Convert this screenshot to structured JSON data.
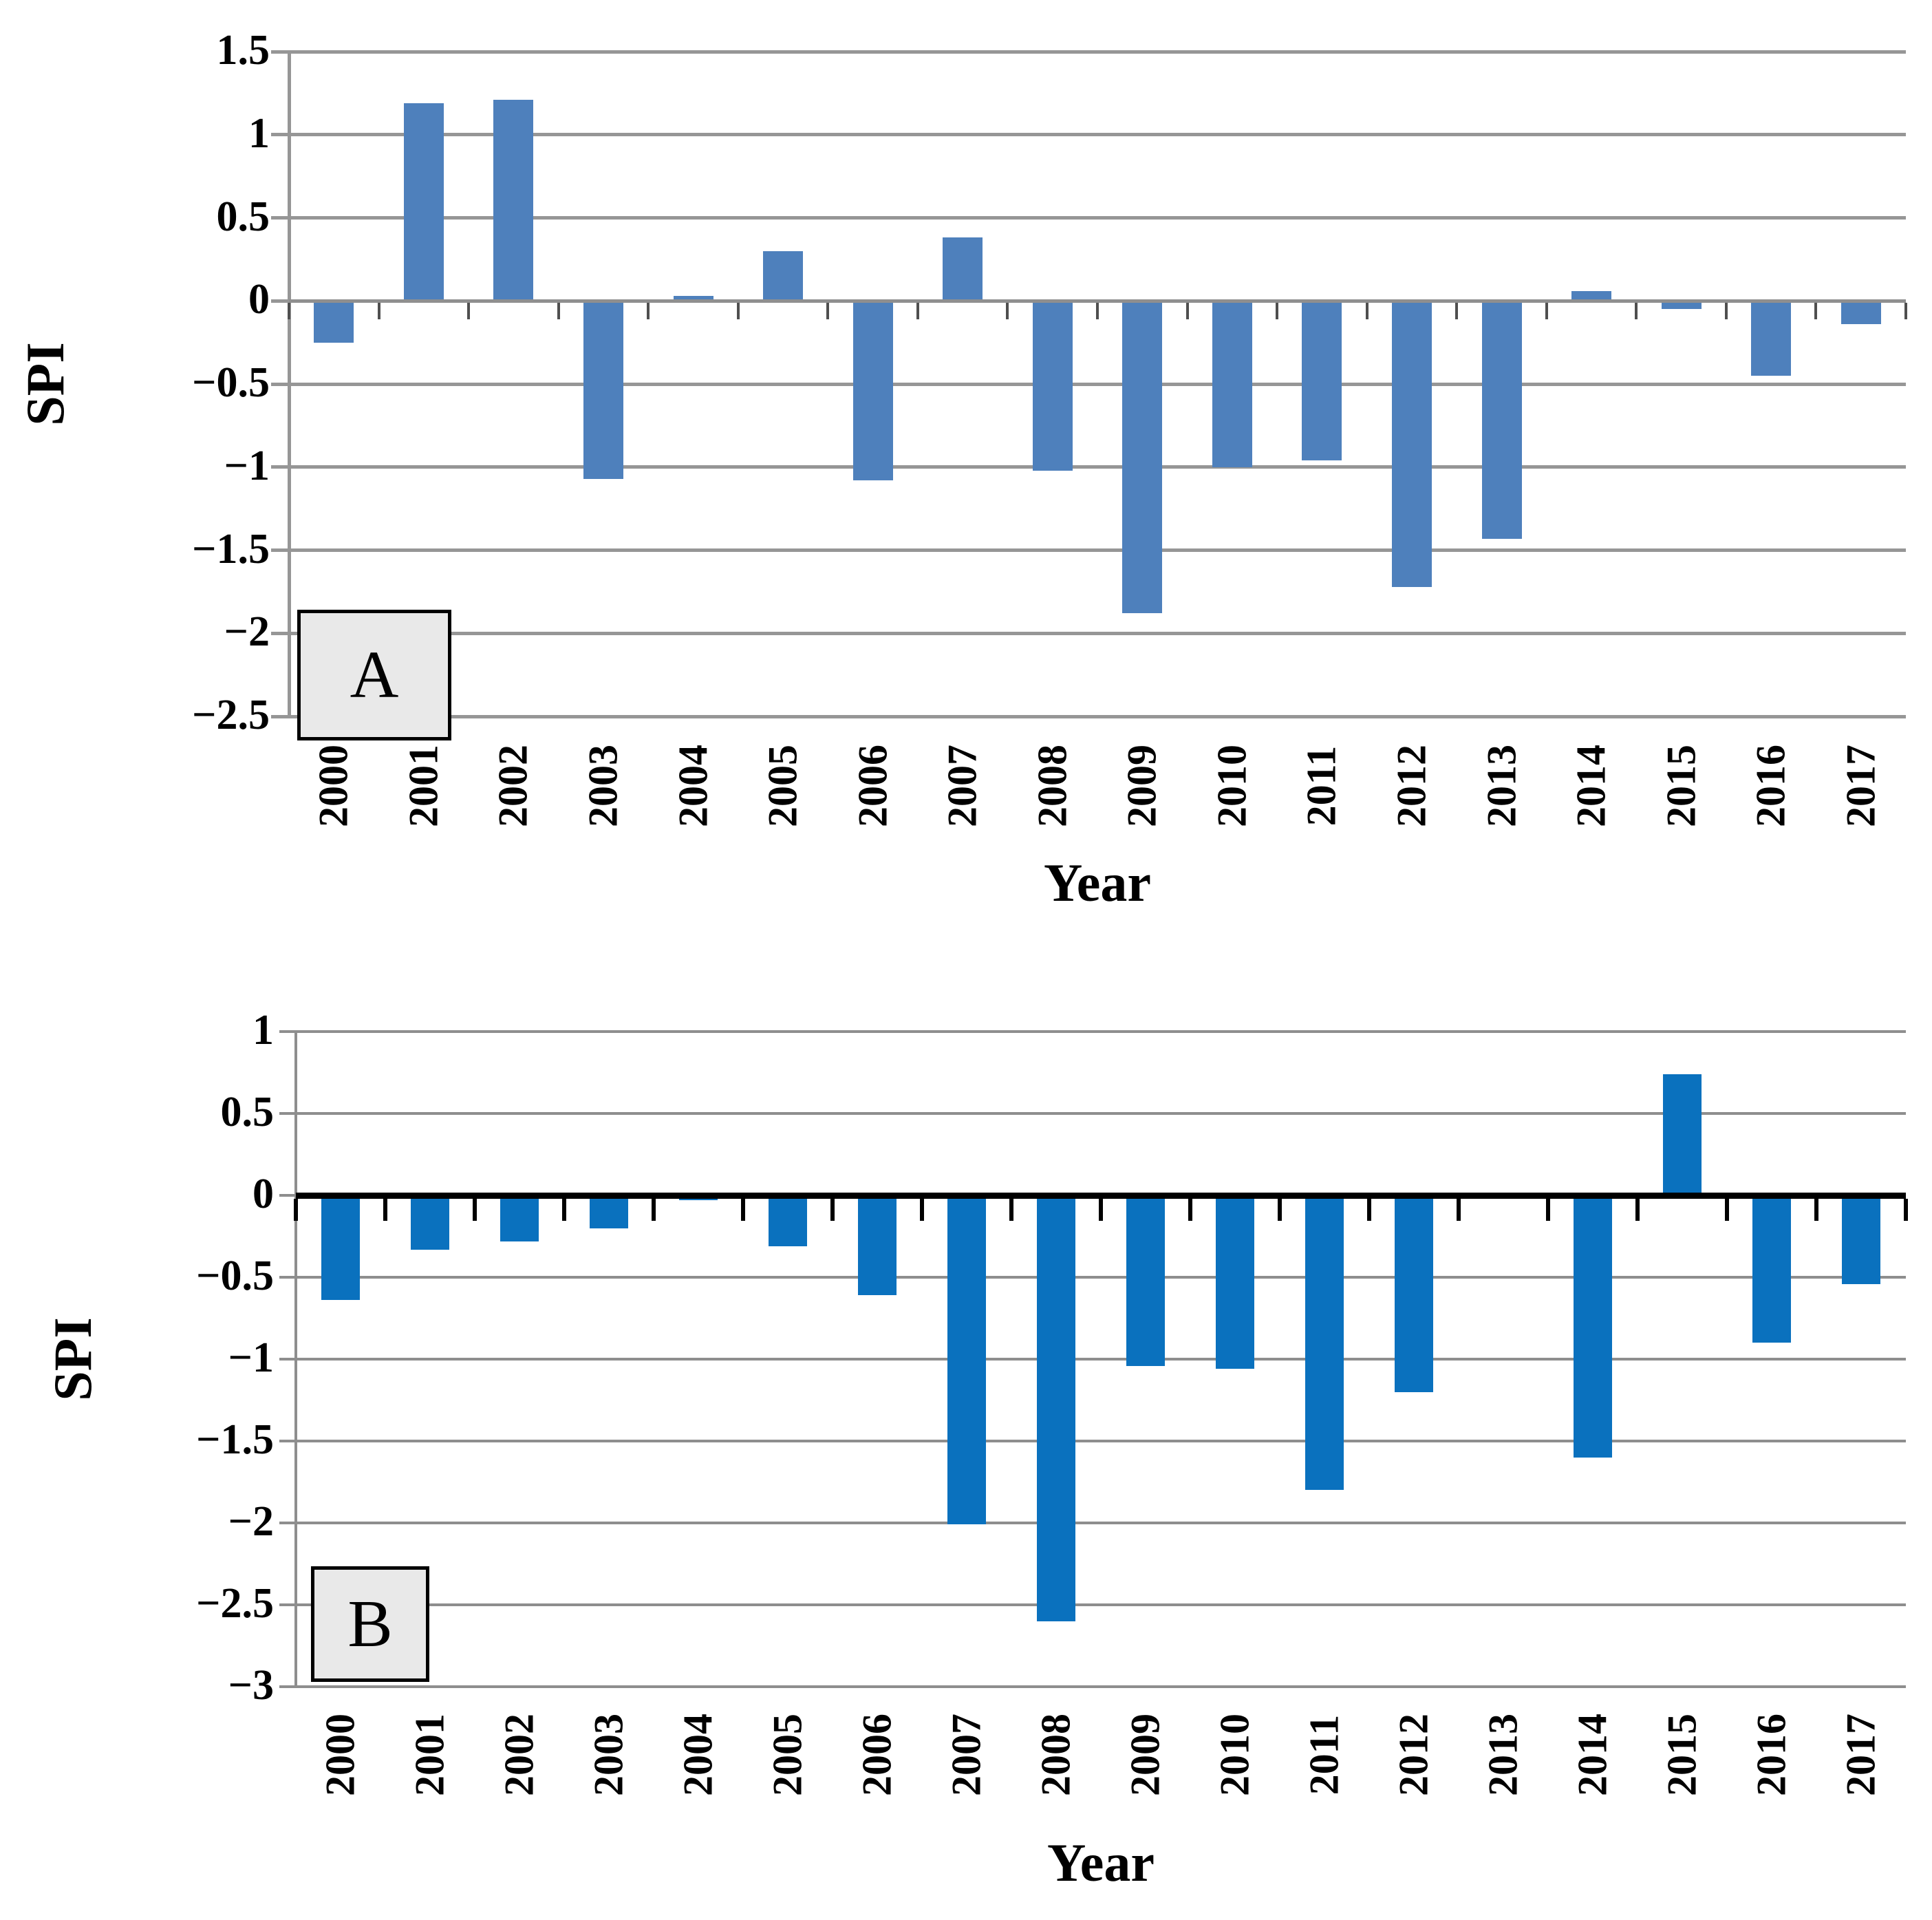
{
  "figure": {
    "background_color": "#ffffff",
    "panels": [
      "A",
      "B"
    ]
  },
  "chart_data": [
    {
      "type": "bar",
      "panel_label": "A",
      "ylabel": "SPI",
      "xlabel": "Year",
      "categories": [
        "2000",
        "2001",
        "2002",
        "2003",
        "2004",
        "2005",
        "2006",
        "2007",
        "2008",
        "2009",
        "2010",
        "2011",
        "2012",
        "2013",
        "2014",
        "2015",
        "2016",
        "2017"
      ],
      "values": [
        -0.25,
        1.19,
        1.21,
        -1.07,
        0.03,
        0.3,
        -1.08,
        0.38,
        -1.02,
        -1.88,
        -1.0,
        -0.96,
        -1.72,
        -1.43,
        0.06,
        -0.05,
        -0.45,
        -0.14
      ],
      "ylim": [
        -2.5,
        1.5
      ],
      "ytick_step": 0.5,
      "ytick_labels": [
        "1.5",
        "1",
        "0.5",
        "0",
        "−0.5",
        "−1",
        "−1.5",
        "−2",
        "−2.5"
      ],
      "grid_on": true,
      "legend": null,
      "bar_color": "#4e80bc",
      "grid_color": "#969696",
      "zero_axis_color": "#8f8f8f",
      "xtick_color": "#4f4f4f",
      "panel_fill": "#e9e9e9"
    },
    {
      "type": "bar",
      "panel_label": "B",
      "ylabel": "SPI",
      "xlabel": "Year",
      "categories": [
        "2000",
        "2001",
        "2002",
        "2003",
        "2004",
        "2005",
        "2006",
        "2007",
        "2008",
        "2009",
        "2010",
        "2011",
        "2012",
        "2013",
        "2014",
        "2015",
        "2016",
        "2017"
      ],
      "values": [
        -0.64,
        -0.33,
        -0.28,
        -0.2,
        -0.03,
        -0.31,
        -0.61,
        -2.01,
        -2.6,
        -1.04,
        -1.06,
        -1.8,
        -1.2,
        0.0,
        -1.6,
        0.74,
        -0.9,
        -0.54
      ],
      "ylim": [
        -3,
        1
      ],
      "ytick_step": 0.5,
      "ytick_labels": [
        "1",
        "0.5",
        "0",
        "−0.5",
        "−1",
        "−1.5",
        "−2",
        "−2.5",
        "−3"
      ],
      "grid_on": true,
      "legend": null,
      "bar_color": "#0a71be",
      "grid_color": "#8e8e8e",
      "zero_axis_color": "#000000",
      "xtick_color": "#000000",
      "panel_fill": "#e9e9e9"
    }
  ]
}
